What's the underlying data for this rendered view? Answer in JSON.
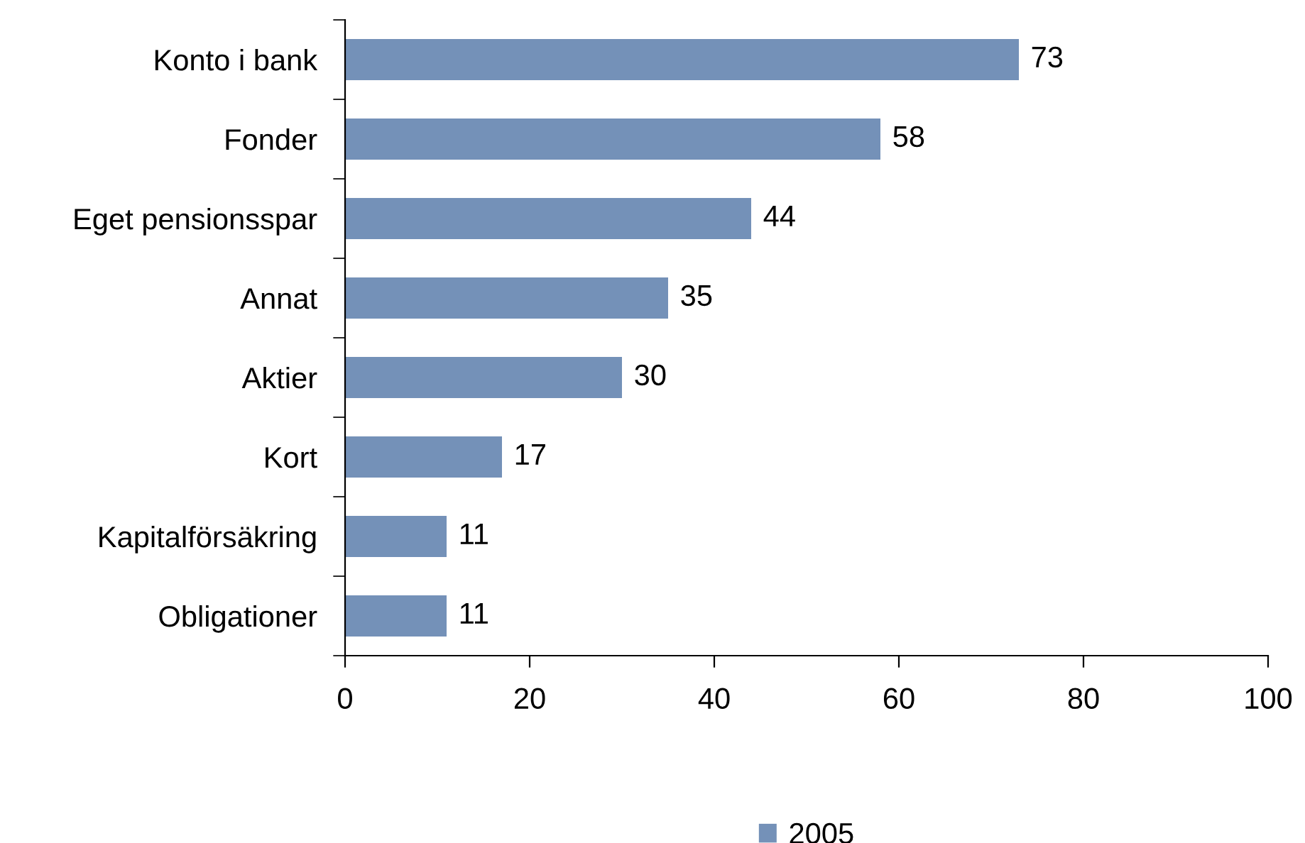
{
  "chart_data": {
    "type": "bar",
    "orientation": "horizontal",
    "categories": [
      "Konto i bank",
      "Fonder",
      "Eget pensionsspar",
      "Annat",
      "Aktier",
      "Kort",
      "Kapitalförsäkring",
      "Obligationer"
    ],
    "series": [
      {
        "name": "2005",
        "color": "#7491b8",
        "values": [
          73,
          58,
          44,
          35,
          30,
          17,
          11,
          11
        ]
      }
    ],
    "xlim": [
      0,
      100
    ],
    "xticks": [
      0,
      20,
      40,
      60,
      80,
      100
    ],
    "data_labels": true,
    "grid": false,
    "legend": "bottom"
  }
}
